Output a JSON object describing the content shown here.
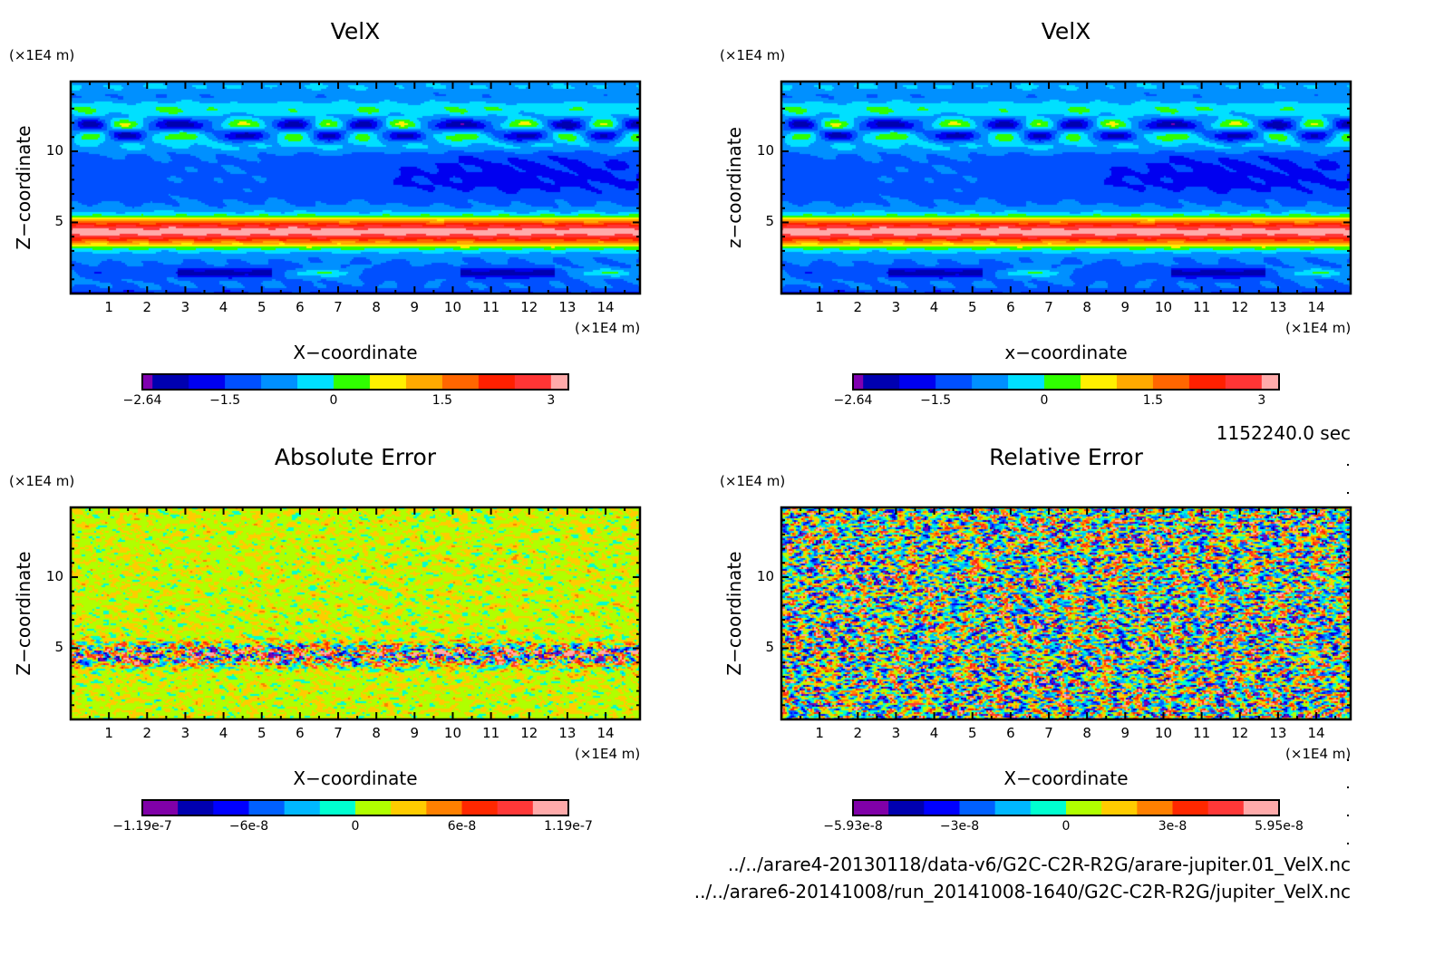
{
  "chart_data": [
    {
      "type": "heatmap",
      "title": "VelX",
      "xlabel": "X-coordinate",
      "ylabel": "Z-coordinate",
      "x_unit": "(×1E4 m)",
      "y_unit": "(×1E4 m)",
      "xlim": [
        0,
        14.9
      ],
      "ylim": [
        0,
        14.9
      ],
      "x_ticks": [
        "1",
        "2",
        "3",
        "4",
        "5",
        "6",
        "7",
        "8",
        "9",
        "10",
        "11",
        "12",
        "13",
        "14"
      ],
      "y_ticks": [
        "5",
        "10"
      ],
      "colorbar": {
        "levels": [
          -2.64,
          -2.5,
          -2,
          -1.5,
          -1,
          -0.5,
          0,
          0.5,
          1,
          1.5,
          2,
          2.5,
          3,
          3.24
        ],
        "labels": [
          "-2.64",
          "-1.5",
          "0",
          "1.5",
          "3"
        ],
        "label_values": [
          -2.64,
          -1.5,
          0,
          1.5,
          3
        ],
        "colors": [
          "#8000b0",
          "#0000b0",
          "#0000f0",
          "#0050ff",
          "#0090ff",
          "#00e0ff",
          "#30ff00",
          "#fff000",
          "#ffaa00",
          "#ff6600",
          "#ff2000",
          "#ff3535",
          "#ffaaaa"
        ]
      }
    },
    {
      "type": "heatmap",
      "title": "VelX",
      "xlabel": "x-coordinate",
      "ylabel": "z-coordinate",
      "x_unit": "(×1E4 m)",
      "y_unit": "(×1E4 m)",
      "xlim": [
        0,
        14.9
      ],
      "ylim": [
        0,
        14.9
      ],
      "x_ticks": [
        "1",
        "2",
        "3",
        "4",
        "5",
        "6",
        "7",
        "8",
        "9",
        "10",
        "11",
        "12",
        "13",
        "14"
      ],
      "y_ticks": [
        "5",
        "10"
      ],
      "colorbar": {
        "levels": [
          -2.64,
          -2.5,
          -2,
          -1.5,
          -1,
          -0.5,
          0,
          0.5,
          1,
          1.5,
          2,
          2.5,
          3,
          3.24
        ],
        "labels": [
          "-2.64",
          "-1.5",
          "0",
          "1.5",
          "3"
        ],
        "label_values": [
          -2.64,
          -1.5,
          0,
          1.5,
          3
        ],
        "colors": [
          "#8000b0",
          "#0000b0",
          "#0000f0",
          "#0050ff",
          "#0090ff",
          "#00e0ff",
          "#30ff00",
          "#fff000",
          "#ffaa00",
          "#ff6600",
          "#ff2000",
          "#ff3535",
          "#ffaaaa"
        ]
      }
    },
    {
      "type": "heatmap",
      "title": "Absolute Error",
      "xlabel": "X-coordinate",
      "ylabel": "Z-coordinate",
      "x_unit": "(×1E4 m)",
      "y_unit": "(×1E4 m)",
      "xlim": [
        0,
        14.9
      ],
      "ylim": [
        0,
        14.9
      ],
      "x_ticks": [
        "1",
        "2",
        "3",
        "4",
        "5",
        "6",
        "7",
        "8",
        "9",
        "10",
        "11",
        "12",
        "13",
        "14"
      ],
      "y_ticks": [
        "5",
        "10"
      ],
      "colorbar": {
        "levels": [
          -1.19e-07,
          -1e-07,
          -8e-08,
          -6e-08,
          -4e-08,
          -2e-08,
          0,
          2e-08,
          4e-08,
          6e-08,
          8e-08,
          1e-07,
          1.19e-07
        ],
        "labels": [
          "-1.19e-7",
          "-6e-8",
          "0",
          "6e-8",
          "1.19e-7"
        ],
        "label_values": [
          -1.19e-07,
          -6e-08,
          0,
          6e-08,
          1.19e-07
        ],
        "colors": [
          "#8000a8",
          "#0000b0",
          "#0000ff",
          "#0060ff",
          "#00b8ff",
          "#00ffd0",
          "#b0ff00",
          "#ffcc00",
          "#ff8000",
          "#ff2800",
          "#ff3838",
          "#ffaaaa"
        ]
      }
    },
    {
      "type": "heatmap",
      "title": "Relative Error",
      "xlabel": "X-coordinate",
      "ylabel": "Z-coordinate",
      "x_unit": "(×1E4 m)",
      "y_unit": "(×1E4 m)",
      "xlim": [
        0,
        14.9
      ],
      "ylim": [
        0,
        14.9
      ],
      "x_ticks": [
        "1",
        "2",
        "3",
        "4",
        "5",
        "6",
        "7",
        "8",
        "9",
        "10",
        "11",
        "12",
        "13",
        "14"
      ],
      "y_ticks": [
        "5",
        "10"
      ],
      "colorbar": {
        "levels": [
          -5.93e-08,
          -5e-08,
          -4e-08,
          -3e-08,
          -2e-08,
          -1e-08,
          0,
          1e-08,
          2e-08,
          3e-08,
          4e-08,
          5e-08,
          5.95e-08
        ],
        "labels": [
          "-5.93e-8",
          "-3e-8",
          "0",
          "3e-8",
          "5.95e-8"
        ],
        "label_values": [
          -5.93e-08,
          -3e-08,
          0,
          3e-08,
          5.95e-08
        ],
        "colors": [
          "#8000a8",
          "#0000b0",
          "#0000ff",
          "#0060ff",
          "#00b8ff",
          "#00ffd0",
          "#b0ff00",
          "#ffcc00",
          "#ff8000",
          "#ff2800",
          "#ff3838",
          "#ffaaaa"
        ]
      }
    }
  ],
  "time_label": "1152240.0 sec",
  "files": [
    "../../arare4-20130118/data-v6/G2C-C2R-R2G/arare-jupiter.01_VelX.nc",
    "../../arare6-20141008/run_20141008-1640/G2C-C2R-R2G/jupiter_VelX.nc"
  ]
}
